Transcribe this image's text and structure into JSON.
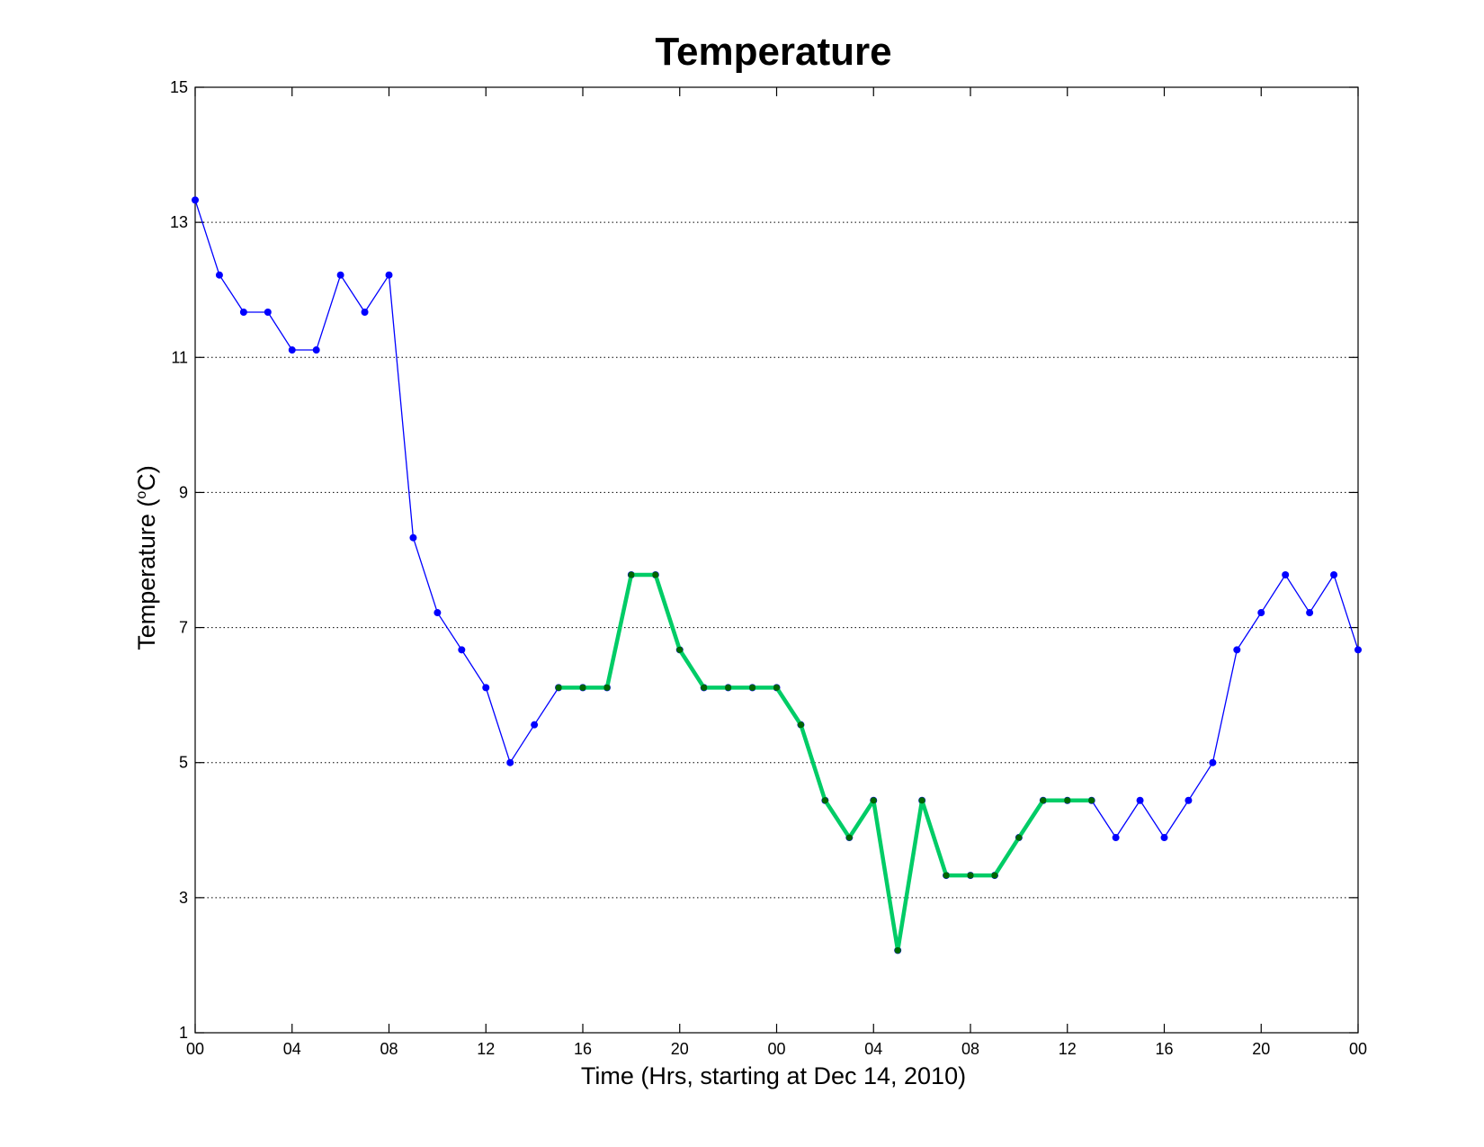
{
  "chart_data": {
    "type": "line",
    "title": "Temperature",
    "xlabel": "Time (Hrs, starting at Dec 14, 2010)",
    "ylabel_main": "Temperature (",
    "ylabel_degree": "o",
    "ylabel_unit": "C)",
    "xlim": [
      0,
      48
    ],
    "ylim": [
      1,
      15
    ],
    "yticks": [
      "1",
      "3",
      "5",
      "7",
      "9",
      "11",
      "13",
      "15"
    ],
    "xticks": [
      {
        "x": 0,
        "label": "00"
      },
      {
        "x": 4,
        "label": "04"
      },
      {
        "x": 8,
        "label": "08"
      },
      {
        "x": 12,
        "label": "12"
      },
      {
        "x": 16,
        "label": "16"
      },
      {
        "x": 20,
        "label": "20"
      },
      {
        "x": 24,
        "label": "00"
      },
      {
        "x": 28,
        "label": "04"
      },
      {
        "x": 32,
        "label": "08"
      },
      {
        "x": 36,
        "label": "12"
      },
      {
        "x": 40,
        "label": "16"
      },
      {
        "x": 44,
        "label": "20"
      },
      {
        "x": 48,
        "label": "00"
      }
    ],
    "grid_y": true,
    "series": [
      {
        "color": "#0000ff",
        "x": [
          0,
          1,
          2,
          3,
          4,
          5,
          6,
          7,
          8,
          9,
          10,
          11,
          12,
          13,
          14,
          15,
          16,
          17,
          18,
          19,
          20,
          21,
          22,
          23,
          24,
          25,
          26,
          27,
          28,
          29,
          30,
          31,
          32,
          33,
          34,
          35,
          36,
          37,
          38,
          39,
          40,
          41,
          42,
          43,
          44,
          45,
          46,
          47,
          48
        ],
        "values": [
          13.33,
          12.22,
          11.67,
          11.67,
          11.11,
          11.11,
          12.22,
          11.67,
          12.22,
          8.33,
          7.22,
          6.67,
          6.11,
          5.0,
          5.56,
          6.11,
          6.11,
          6.11,
          7.78,
          7.78,
          6.67,
          6.11,
          6.11,
          6.11,
          6.11,
          5.56,
          4.44,
          3.89,
          4.44,
          2.22,
          4.44,
          3.33,
          3.33,
          3.33,
          3.89,
          4.44,
          4.44,
          4.44,
          3.89,
          4.44,
          3.89,
          4.44,
          5.0,
          6.67,
          7.22,
          7.78,
          7.22,
          7.78,
          6.67
        ]
      },
      {
        "color": "#00cc66",
        "marker_color": "#006600",
        "x": [
          15,
          16,
          17,
          18,
          19,
          20,
          21,
          22,
          23,
          24,
          25,
          26,
          27,
          28,
          29,
          30,
          31,
          32,
          33,
          34,
          35,
          36,
          37
        ],
        "values": [
          6.11,
          6.11,
          6.11,
          7.78,
          7.78,
          6.67,
          6.11,
          6.11,
          6.11,
          6.11,
          5.56,
          4.44,
          3.89,
          4.44,
          2.22,
          4.44,
          3.33,
          3.33,
          3.33,
          3.89,
          4.44,
          4.44,
          4.44
        ]
      }
    ]
  }
}
